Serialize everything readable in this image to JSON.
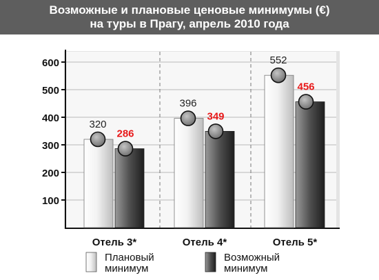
{
  "header": {
    "title_line1": "Возможные и плановые ценовые минимумы (€)",
    "title_line2": "на туры в Прагу, апрель 2010 года"
  },
  "chart_data": {
    "type": "bar",
    "categories": [
      "Отель 3*",
      "Отель 4*",
      "Отель 5*"
    ],
    "series": [
      {
        "name": "Плановый минимум",
        "values": [
          320,
          396,
          552
        ]
      },
      {
        "name": "Возможный минимум",
        "values": [
          286,
          349,
          456
        ]
      }
    ],
    "ylim": [
      0,
      650
    ],
    "yticks": [
      "100",
      "200",
      "300",
      "400",
      "500",
      "600"
    ],
    "grid": true,
    "legend": "bottom",
    "colors": {
      "planned_label": "#222222",
      "possible_label": "#e8191a",
      "planned_bar": "#e6e6e6",
      "possible_bar": "#4a4a4a",
      "marker": "#8a8a8a",
      "header_bg": "#5e5e5e"
    }
  },
  "legend": {
    "planned_line1": "Плановый",
    "planned_line2": "минимум",
    "possible_line1": "Возможный",
    "possible_line2": "минимум"
  }
}
